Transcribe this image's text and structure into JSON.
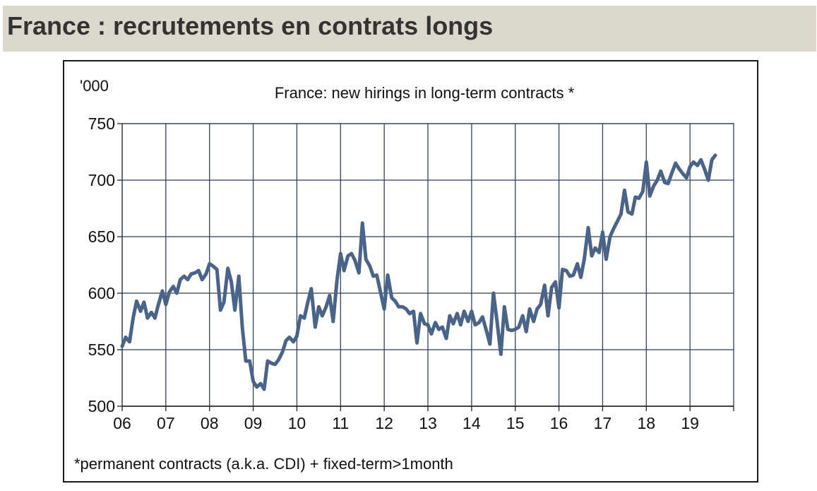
{
  "page": {
    "title": "France : recrutements en contrats longs"
  },
  "chart_data": {
    "type": "line",
    "title": "France: new hirings in long-term contracts *",
    "unit_label": "'000",
    "footnote": "*permanent contracts (a.k.a. CDI) + fixed-term>1month",
    "xlabel": "",
    "ylabel": "",
    "ylim": [
      500,
      750
    ],
    "yticks": [
      500,
      550,
      600,
      650,
      700,
      750
    ],
    "xlim": [
      2006,
      2020
    ],
    "xtick_labels": [
      "06",
      "07",
      "08",
      "09",
      "10",
      "11",
      "12",
      "13",
      "14",
      "15",
      "16",
      "17",
      "18",
      "19"
    ],
    "grid": true,
    "line_color": "#4a6389",
    "series": [
      {
        "x": [
          2006.0,
          2006.08,
          2006.17,
          2006.25,
          2006.33,
          2006.42,
          2006.5,
          2006.58,
          2006.67,
          2006.75,
          2006.83,
          2006.92,
          2007.0,
          2007.08,
          2007.17,
          2007.25,
          2007.33,
          2007.42,
          2007.5,
          2007.58,
          2007.67,
          2007.75,
          2007.83,
          2007.92,
          2008.0,
          2008.08,
          2008.17,
          2008.25,
          2008.33,
          2008.42,
          2008.5,
          2008.58,
          2008.67,
          2008.75,
          2008.83,
          2008.92,
          2009.0,
          2009.08,
          2009.17,
          2009.25,
          2009.33,
          2009.42,
          2009.5,
          2009.58,
          2009.67,
          2009.75,
          2009.83,
          2009.92,
          2010.0,
          2010.08,
          2010.17,
          2010.25,
          2010.33,
          2010.42,
          2010.5,
          2010.58,
          2010.67,
          2010.75,
          2010.83,
          2010.92,
          2011.0,
          2011.08,
          2011.17,
          2011.25,
          2011.33,
          2011.42,
          2011.5,
          2011.58,
          2011.67,
          2011.75,
          2011.83,
          2011.92,
          2012.0,
          2012.08,
          2012.17,
          2012.25,
          2012.33,
          2012.42,
          2012.5,
          2012.58,
          2012.67,
          2012.75,
          2012.83,
          2012.92,
          2013.0,
          2013.08,
          2013.17,
          2013.25,
          2013.33,
          2013.42,
          2013.5,
          2013.58,
          2013.67,
          2013.75,
          2013.83,
          2013.92,
          2014.0,
          2014.08,
          2014.17,
          2014.25,
          2014.33,
          2014.42,
          2014.5,
          2014.58,
          2014.67,
          2014.75,
          2014.83,
          2014.92,
          2015.0,
          2015.08,
          2015.17,
          2015.25,
          2015.33,
          2015.42,
          2015.5,
          2015.58,
          2015.67,
          2015.75,
          2015.83,
          2015.92,
          2016.0,
          2016.08,
          2016.17,
          2016.25,
          2016.33,
          2016.42,
          2016.5,
          2016.58,
          2016.67,
          2016.75,
          2016.83,
          2016.92,
          2017.0,
          2017.08,
          2017.17,
          2017.25,
          2017.33,
          2017.42,
          2017.5,
          2017.58,
          2017.67,
          2017.75,
          2017.83,
          2017.92,
          2018.0,
          2018.08,
          2018.17,
          2018.25,
          2018.33,
          2018.42,
          2018.5,
          2018.58,
          2018.67,
          2018.75,
          2018.83,
          2018.92,
          2019.0,
          2019.08,
          2019.17,
          2019.25,
          2019.33,
          2019.42,
          2019.5,
          2019.58
        ],
        "y": [
          553,
          561,
          557,
          578,
          593,
          584,
          592,
          578,
          583,
          578,
          590,
          602,
          590,
          601,
          606,
          600,
          612,
          615,
          612,
          617,
          618,
          620,
          612,
          617,
          626,
          624,
          621,
          585,
          592,
          622,
          610,
          585,
          615,
          570,
          540,
          540,
          522,
          517,
          520,
          515,
          540,
          538,
          537,
          541,
          548,
          558,
          561,
          557,
          562,
          580,
          578,
          592,
          604,
          570,
          588,
          580,
          588,
          598,
          575,
          612,
          635,
          620,
          633,
          635,
          629,
          618,
          662,
          630,
          624,
          615,
          616,
          600,
          586,
          616,
          596,
          593,
          588,
          588,
          586,
          582,
          584,
          556,
          582,
          573,
          572,
          564,
          574,
          568,
          570,
          560,
          580,
          573,
          582,
          572,
          584,
          575,
          584,
          572,
          574,
          579,
          568,
          555,
          600,
          576,
          546,
          588,
          568,
          567,
          568,
          570,
          580,
          566,
          586,
          575,
          586,
          590,
          607,
          580,
          605,
          610,
          587,
          621,
          620,
          615,
          616,
          626,
          614,
          630,
          658,
          633,
          640,
          636,
          654,
          630,
          650,
          657,
          663,
          670,
          691,
          672,
          670,
          685,
          684,
          690,
          716,
          686,
          695,
          700,
          708,
          698,
          697,
          706,
          715,
          710,
          706,
          702,
          712,
          716,
          713,
          718,
          710,
          700,
          718,
          722
        ]
      }
    ]
  }
}
